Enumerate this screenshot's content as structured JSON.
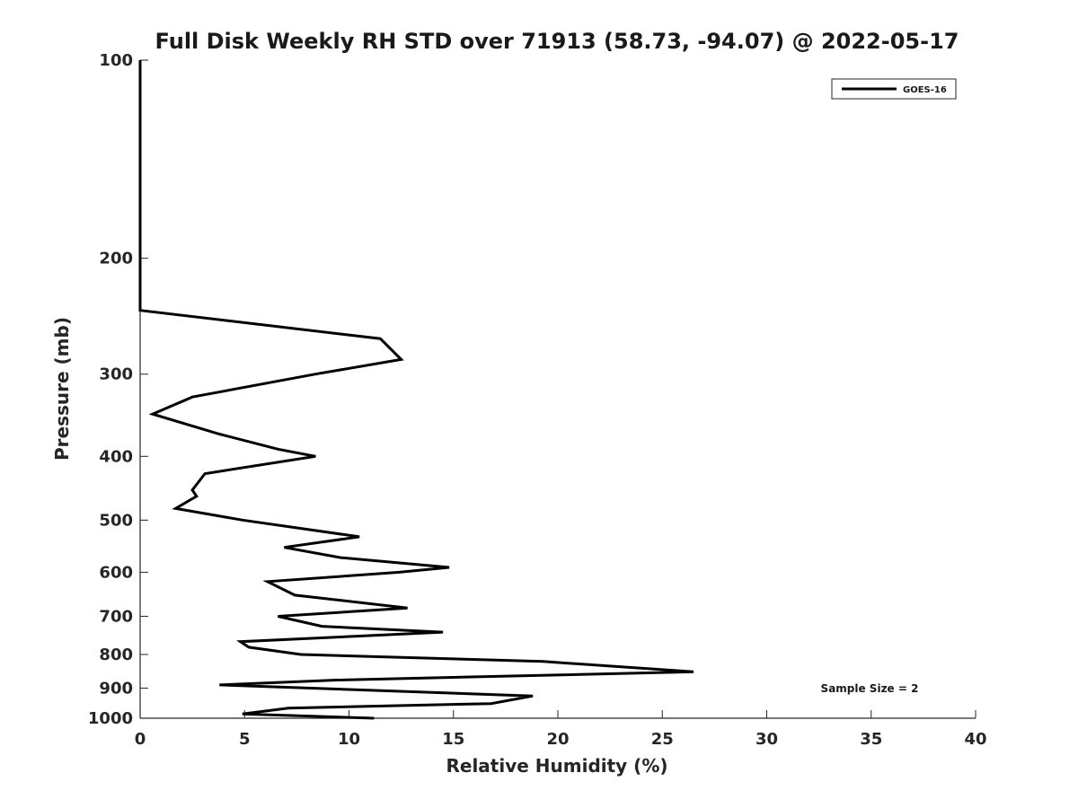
{
  "chart_data": {
    "type": "line",
    "title": "Full Disk Weekly RH STD over 71913 (58.73, -94.07) @ 2022-05-17",
    "xlabel": "Relative Humidity (%)",
    "ylabel": "Pressure (mb)",
    "xlim": [
      0,
      40
    ],
    "ylim": [
      100,
      1000
    ],
    "y_scale": "log",
    "y_inverted": true,
    "grid": false,
    "legend_position": "top-right",
    "x_ticks": [
      0,
      5,
      10,
      15,
      20,
      25,
      30,
      35,
      40
    ],
    "y_ticks": [
      100,
      200,
      300,
      400,
      500,
      600,
      700,
      800,
      900,
      1000
    ],
    "series": [
      {
        "name": "GOES-16",
        "color": "#000000",
        "points": [
          {
            "x": 0,
            "y": 100
          },
          {
            "x": 0,
            "y": 150
          },
          {
            "x": 0,
            "y": 200
          },
          {
            "x": 0,
            "y": 240
          },
          {
            "x": 11.5,
            "y": 265
          },
          {
            "x": 12.5,
            "y": 285
          },
          {
            "x": 8.4,
            "y": 300
          },
          {
            "x": 2.5,
            "y": 325
          },
          {
            "x": 0.6,
            "y": 345
          },
          {
            "x": 3.8,
            "y": 370
          },
          {
            "x": 6.6,
            "y": 390
          },
          {
            "x": 8.4,
            "y": 400
          },
          {
            "x": 3.1,
            "y": 425
          },
          {
            "x": 2.5,
            "y": 450
          },
          {
            "x": 2.7,
            "y": 460
          },
          {
            "x": 1.7,
            "y": 480
          },
          {
            "x": 4.9,
            "y": 500
          },
          {
            "x": 10.5,
            "y": 530
          },
          {
            "x": 6.9,
            "y": 550
          },
          {
            "x": 9.6,
            "y": 570
          },
          {
            "x": 14.8,
            "y": 590
          },
          {
            "x": 12.4,
            "y": 600
          },
          {
            "x": 6.1,
            "y": 620
          },
          {
            "x": 7.4,
            "y": 650
          },
          {
            "x": 12.8,
            "y": 680
          },
          {
            "x": 6.6,
            "y": 700
          },
          {
            "x": 8.7,
            "y": 725
          },
          {
            "x": 14.5,
            "y": 740
          },
          {
            "x": 4.8,
            "y": 765
          },
          {
            "x": 5.2,
            "y": 780
          },
          {
            "x": 7.7,
            "y": 800
          },
          {
            "x": 19.3,
            "y": 820
          },
          {
            "x": 26.5,
            "y": 850
          },
          {
            "x": 9.4,
            "y": 875
          },
          {
            "x": 3.8,
            "y": 890
          },
          {
            "x": 18.8,
            "y": 925
          },
          {
            "x": 16.8,
            "y": 950
          },
          {
            "x": 7.1,
            "y": 965
          },
          {
            "x": 4.9,
            "y": 985
          },
          {
            "x": 11.2,
            "y": 1000
          }
        ]
      }
    ],
    "annotation": "Sample Size = 2"
  }
}
